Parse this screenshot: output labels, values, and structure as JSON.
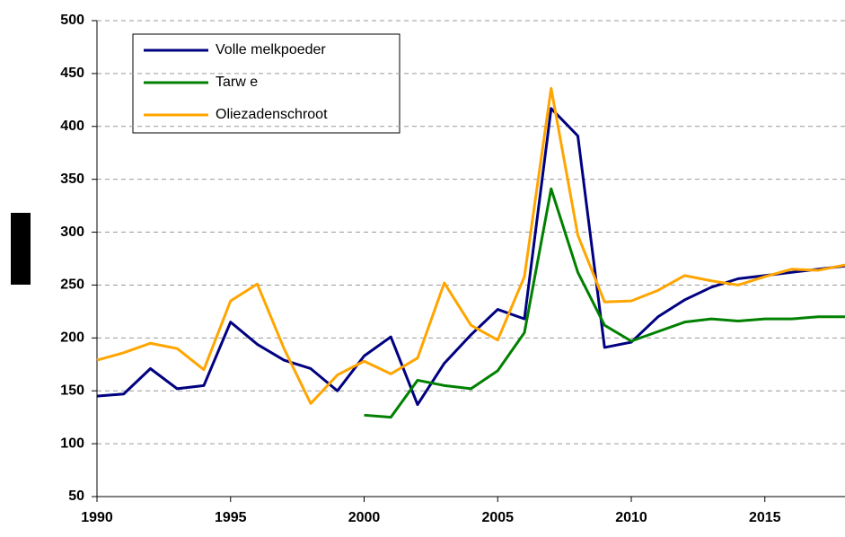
{
  "chart_data": {
    "type": "line",
    "x": [
      1990,
      1991,
      1992,
      1993,
      1994,
      1995,
      1996,
      1997,
      1998,
      1999,
      2000,
      2001,
      2002,
      2003,
      2004,
      2005,
      2006,
      2007,
      2008,
      2009,
      2010,
      2011,
      2012,
      2013,
      2014,
      2015,
      2016,
      2017,
      2018
    ],
    "series": [
      {
        "name": "Volle melkpoeder",
        "color": "#000080",
        "values": [
          145,
          147,
          171,
          152,
          155,
          215,
          194,
          179,
          171,
          150,
          183,
          201,
          137,
          176,
          203,
          227,
          218,
          417,
          391,
          191,
          196,
          220,
          236,
          248,
          256,
          259,
          262,
          265,
          268
        ]
      },
      {
        "name": "Tarw e",
        "color": "#008000",
        "values": [
          null,
          null,
          null,
          null,
          null,
          null,
          null,
          null,
          null,
          null,
          127,
          125,
          160,
          155,
          152,
          169,
          205,
          341,
          262,
          212,
          197,
          206,
          215,
          218,
          216,
          218,
          218,
          220,
          220
        ]
      },
      {
        "name": "Oliezadenschroot",
        "color": "#ffa500",
        "values": [
          179,
          186,
          195,
          190,
          170,
          235,
          251,
          190,
          138,
          165,
          178,
          166,
          181,
          252,
          212,
          198,
          258,
          436,
          297,
          234,
          235,
          245,
          259,
          254,
          250,
          258,
          265,
          264,
          269
        ]
      }
    ],
    "xlim": [
      1990,
      2018
    ],
    "xticks": [
      1990,
      1995,
      2000,
      2005,
      2010,
      2015
    ],
    "ylim": [
      50,
      500
    ],
    "yticks": [
      50,
      100,
      150,
      200,
      250,
      300,
      350,
      400,
      450,
      500
    ],
    "grid": true
  }
}
